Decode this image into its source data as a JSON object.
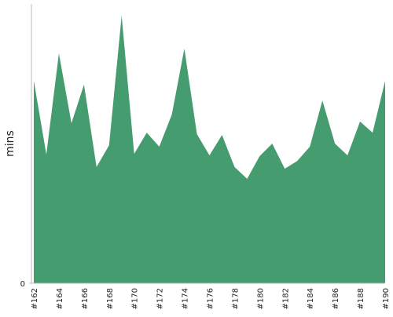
{
  "chart_data": {
    "type": "area",
    "ylabel": "mins",
    "categories": [
      "#162",
      null,
      "#164",
      null,
      "#166",
      null,
      "#168",
      null,
      "#170",
      null,
      "#172",
      null,
      "#174",
      null,
      "#176",
      null,
      "#178",
      null,
      "#180",
      null,
      "#182",
      null,
      "#184",
      null,
      "#186",
      null,
      "#188",
      null,
      "#190"
    ],
    "values": [
      7.25,
      4.61,
      8.23,
      5.73,
      7.11,
      4.16,
      4.94,
      9.58,
      4.63,
      5.39,
      4.89,
      6.04,
      8.4,
      5.34,
      4.58,
      5.31,
      4.16,
      3.74,
      4.55,
      5.0,
      4.1,
      4.38,
      4.89,
      6.54,
      5.0,
      4.58,
      5.79,
      5.39,
      7.25
    ],
    "color": "#459c6e",
    "ylim": [
      0,
      10
    ],
    "yticks": [
      0
    ]
  }
}
